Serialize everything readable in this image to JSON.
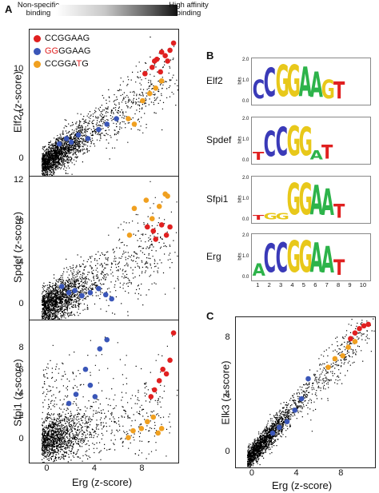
{
  "panels": {
    "A": "A",
    "B": "B",
    "C": "C"
  },
  "gradient": {
    "low": "Non-specific binding",
    "high": "High affinity binding"
  },
  "legend": [
    {
      "text": "CCGGAAG",
      "color": "#e02020",
      "parts": [
        {
          "t": "CCGGAAG",
          "c": "#111111"
        }
      ]
    },
    {
      "text": "GGGGAAG",
      "color": "#3a56b8",
      "parts": [
        {
          "t": "GG",
          "c": "#e02020"
        },
        {
          "t": "GGAAG",
          "c": "#111111"
        }
      ]
    },
    {
      "text": "CCGGATG",
      "color": "#f0a020",
      "parts": [
        {
          "t": "CCGGA",
          "c": "#111111"
        },
        {
          "t": "T",
          "c": "#e02020"
        },
        {
          "t": "G",
          "c": "#111111"
        }
      ]
    }
  ],
  "colors": {
    "red": "#e02020",
    "blue": "#3a56b8",
    "orange": "#f0a020",
    "points": "#000000",
    "A": "#2db34a",
    "C": "#3a3ab8",
    "G": "#e8c81a",
    "T": "#e02020"
  },
  "axes": {
    "x_label": "Erg  (z-score)",
    "x_label_c": "Erg  (z-score)"
  },
  "chart_data": [
    {
      "type": "scatter",
      "panel": "A",
      "ylabel": "Elf2  (z-score)",
      "xlabel": "",
      "xlim": [
        -1.5,
        11
      ],
      "ylim": [
        -2,
        14.5
      ],
      "yticks": [
        0,
        5,
        10
      ],
      "series": [
        {
          "name": "CCGGAAG",
          "color": "#e02020",
          "x": [
            8.2,
            8.8,
            9.2,
            9.5,
            9.9,
            10.3,
            10.6,
            9.0,
            9.6,
            10.1
          ],
          "y": [
            9.6,
            10.3,
            11.2,
            9.8,
            11.6,
            12.2,
            13.0,
            11.0,
            12.0,
            11.0
          ]
        },
        {
          "name": "GGGGAAG",
          "color": "#3a56b8",
          "x": [
            1.0,
            1.6,
            2.0,
            2.6,
            3.4,
            4.3,
            5.0,
            5.8
          ],
          "y": [
            1.8,
            2.4,
            2.0,
            2.8,
            2.4,
            3.4,
            4.0,
            4.6
          ]
        },
        {
          "name": "CCGGATG",
          "color": "#f0a020",
          "x": [
            6.8,
            7.3,
            8.0,
            8.6,
            9.1,
            9.6
          ],
          "y": [
            4.6,
            4.0,
            6.6,
            7.4,
            8.0,
            8.8
          ]
        }
      ]
    },
    {
      "type": "scatter",
      "panel": "A",
      "ylabel": "Spdef  (z-score)",
      "xlabel": "",
      "xlim": [
        -1.5,
        11
      ],
      "ylim": [
        -1.5,
        12.5
      ],
      "yticks": [
        0,
        4,
        8,
        12
      ],
      "series": [
        {
          "name": "CCGGAAG",
          "color": "#e02020",
          "x": [
            8.4,
            8.9,
            9.1,
            9.6,
            10.0,
            10.3
          ],
          "y": [
            7.6,
            7.2,
            6.4,
            7.8,
            6.8,
            7.6
          ]
        },
        {
          "name": "GGGGAAG",
          "color": "#3a56b8",
          "x": [
            1.2,
            1.8,
            2.3,
            2.9,
            3.6,
            4.3,
            4.9,
            5.4
          ],
          "y": [
            1.8,
            1.2,
            1.4,
            0.9,
            1.2,
            1.6,
            1.0,
            0.6
          ]
        },
        {
          "name": "CCGGATG",
          "color": "#f0a020",
          "x": [
            6.9,
            7.3,
            8.3,
            8.8,
            9.4,
            9.9,
            10.1
          ],
          "y": [
            6.8,
            9.4,
            10.2,
            8.4,
            9.6,
            10.8,
            10.6
          ]
        }
      ]
    },
    {
      "type": "scatter",
      "panel": "A",
      "ylabel": "Sfpi1  (z-score)",
      "xlabel": "Erg  (z-score)",
      "xlim": [
        -1.5,
        11
      ],
      "ylim": [
        -2,
        10.5
      ],
      "yticks": [
        0,
        2,
        4,
        6,
        8
      ],
      "xticks": [
        0,
        4,
        8
      ],
      "series": [
        {
          "name": "CCGGAAG",
          "color": "#e02020",
          "x": [
            8.7,
            9.0,
            9.4,
            9.7,
            10.0,
            10.3,
            10.6
          ],
          "y": [
            3.8,
            4.4,
            5.2,
            6.2,
            5.8,
            7.0,
            9.4
          ]
        },
        {
          "name": "GGGGAAG",
          "color": "#3a56b8",
          "x": [
            1.8,
            2.4,
            3.2,
            3.6,
            4.0,
            4.4,
            5.0
          ],
          "y": [
            3.2,
            4.0,
            6.2,
            4.8,
            3.8,
            8.0,
            8.8
          ]
        },
        {
          "name": "CCGGATG",
          "color": "#f0a020",
          "x": [
            6.8,
            7.2,
            7.9,
            8.4,
            8.9,
            9.3,
            9.6
          ],
          "y": [
            0.2,
            0.8,
            1.0,
            1.6,
            2.0,
            0.6,
            1.0
          ]
        }
      ]
    },
    {
      "type": "scatter",
      "panel": "C",
      "ylabel": "Elk3  (z-score)",
      "xlabel": "Erg  (z-score)",
      "xlim": [
        -1.5,
        11
      ],
      "ylim": [
        -1,
        9.5
      ],
      "yticks": [
        0,
        4,
        8
      ],
      "xticks": [
        0,
        4,
        8
      ],
      "series": [
        {
          "name": "CCGGAAG",
          "color": "#e02020",
          "x": [
            8.8,
            9.2,
            9.6,
            10.0,
            10.4
          ],
          "y": [
            8.0,
            8.4,
            8.7,
            8.9,
            9.0
          ]
        },
        {
          "name": "GGGGAAG",
          "color": "#3a56b8",
          "x": [
            1.8,
            2.4,
            3.1,
            3.8,
            4.4,
            5.0
          ],
          "y": [
            1.4,
            1.8,
            2.2,
            3.0,
            3.8,
            5.2
          ]
        },
        {
          "name": "CCGGATG",
          "color": "#f0a020",
          "x": [
            6.8,
            7.4,
            8.1,
            8.6,
            9.2
          ],
          "y": [
            6.0,
            6.6,
            6.8,
            7.4,
            7.8
          ]
        }
      ]
    }
  ],
  "logos": [
    {
      "label": "Elf2",
      "letters": [
        [
          "C",
          "#3a3ab8",
          60
        ],
        [
          "C",
          "#3a3ab8",
          90
        ],
        [
          "G",
          "#e8c81a",
          100
        ],
        [
          "G",
          "#e8c81a",
          100
        ],
        [
          "A",
          "#2db34a",
          95
        ],
        [
          "A",
          "#2db34a",
          80
        ],
        [
          "G",
          "#e8c81a",
          60
        ],
        [
          "T",
          "#e02020",
          55
        ]
      ]
    },
    {
      "label": "Spdef",
      "letters": [
        [
          "T",
          "#e02020",
          25
        ],
        [
          "C",
          "#3a3ab8",
          80
        ],
        [
          "C",
          "#3a3ab8",
          90
        ],
        [
          "G",
          "#e8c81a",
          95
        ],
        [
          "G",
          "#e8c81a",
          90
        ],
        [
          "A",
          "#2db34a",
          30
        ],
        [
          "T",
          "#e02020",
          45
        ],
        [
          "",
          null,
          0
        ]
      ]
    },
    {
      "label": "Sfpi1",
      "letters": [
        [
          "T",
          "#e02020",
          15
        ],
        [
          "G",
          "#e8c81a",
          20
        ],
        [
          "G",
          "#e8c81a",
          20
        ],
        [
          "G",
          "#e8c81a",
          100
        ],
        [
          "G",
          "#e8c81a",
          100
        ],
        [
          "A",
          "#2db34a",
          95
        ],
        [
          "A",
          "#2db34a",
          85
        ],
        [
          "T",
          "#e02020",
          45
        ]
      ]
    },
    {
      "label": "Erg",
      "letters": [
        [
          "A",
          "#2db34a",
          40
        ],
        [
          "C",
          "#3a3ab8",
          90
        ],
        [
          "C",
          "#3a3ab8",
          95
        ],
        [
          "G",
          "#e8c81a",
          100
        ],
        [
          "G",
          "#e8c81a",
          100
        ],
        [
          "A",
          "#2db34a",
          95
        ],
        [
          "A",
          "#2db34a",
          85
        ],
        [
          "T",
          "#e02020",
          50
        ]
      ]
    }
  ],
  "logo_axis": {
    "bits": "bits",
    "ticks": [
      "2.0",
      "1.0",
      "0.0"
    ],
    "positions": [
      "1",
      "2",
      "3",
      "4",
      "5",
      "6",
      "7",
      "8",
      "9",
      "10"
    ]
  }
}
